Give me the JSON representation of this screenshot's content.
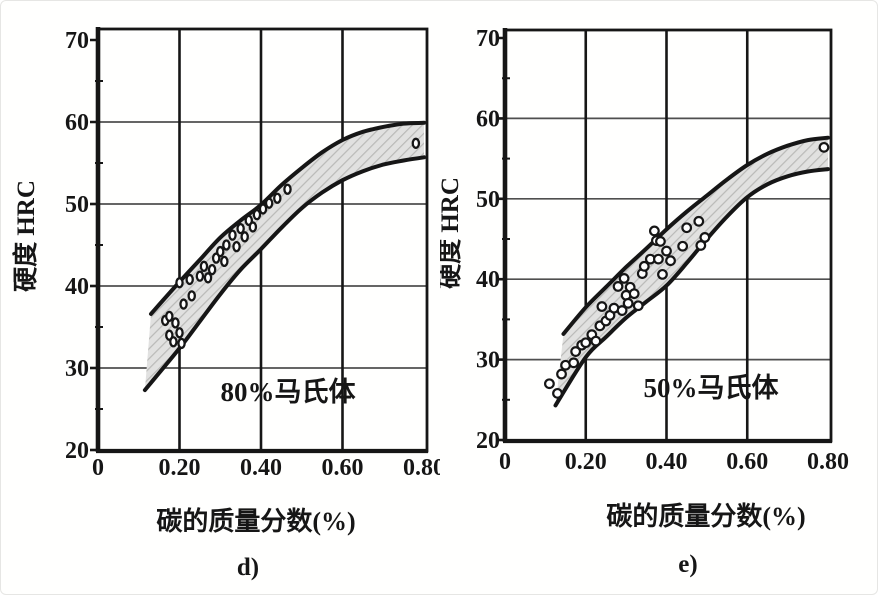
{
  "figure": {
    "background": "#fffffe",
    "ink": "#161616",
    "grid_color": "#4f4f4f",
    "band_fill": "#e1e1e0",
    "band_hatch": "#b9b9b7",
    "marker_fill": "#ffffff"
  },
  "chart_data": [
    {
      "id": "d",
      "type": "scatter",
      "caption": "d)",
      "annotation": "80%马氏体",
      "xlabel": "碳的质量分数(%)",
      "ylabel": "硬度 HRC",
      "xlim": [
        0,
        0.8
      ],
      "ylim": [
        20,
        70
      ],
      "xticks": [
        0,
        0.2,
        0.4,
        0.6,
        0.8
      ],
      "xtick_labels": [
        "0",
        "0.20",
        "0.40",
        "0.60",
        "0.80"
      ],
      "yticks": [
        20,
        30,
        40,
        50,
        60,
        70
      ],
      "ytick_labels": [
        "20",
        "30",
        "40",
        "50",
        "60",
        "70"
      ],
      "minor_yticks": [
        25,
        35,
        45,
        55,
        65
      ],
      "grid": true,
      "band_upper": [
        [
          0.13,
          36.6
        ],
        [
          0.2,
          40.5
        ],
        [
          0.25,
          43.2
        ],
        [
          0.3,
          45.9
        ],
        [
          0.35,
          48.0
        ],
        [
          0.4,
          49.9
        ],
        [
          0.45,
          52.3
        ],
        [
          0.5,
          54.4
        ],
        [
          0.55,
          56.3
        ],
        [
          0.6,
          57.8
        ],
        [
          0.65,
          58.8
        ],
        [
          0.7,
          59.4
        ],
        [
          0.75,
          59.8
        ],
        [
          0.8,
          59.9
        ]
      ],
      "band_lower": [
        [
          0.115,
          27.3
        ],
        [
          0.2,
          32.4
        ],
        [
          0.25,
          35.7
        ],
        [
          0.3,
          39.0
        ],
        [
          0.35,
          42.0
        ],
        [
          0.4,
          44.5
        ],
        [
          0.45,
          47.1
        ],
        [
          0.5,
          49.5
        ],
        [
          0.55,
          51.4
        ],
        [
          0.6,
          52.9
        ],
        [
          0.65,
          54.0
        ],
        [
          0.7,
          54.8
        ],
        [
          0.75,
          55.3
        ],
        [
          0.8,
          55.7
        ]
      ],
      "points": [
        [
          0.165,
          35.8
        ],
        [
          0.175,
          36.3
        ],
        [
          0.175,
          34.0
        ],
        [
          0.185,
          33.2
        ],
        [
          0.19,
          35.5
        ],
        [
          0.2,
          34.3
        ],
        [
          0.205,
          33.0
        ],
        [
          0.21,
          37.8
        ],
        [
          0.23,
          38.8
        ],
        [
          0.2,
          40.4
        ],
        [
          0.225,
          40.8
        ],
        [
          0.25,
          41.2
        ],
        [
          0.27,
          41.0
        ],
        [
          0.26,
          42.4
        ],
        [
          0.28,
          42.0
        ],
        [
          0.29,
          43.4
        ],
        [
          0.3,
          44.2
        ],
        [
          0.31,
          43.0
        ],
        [
          0.315,
          45.0
        ],
        [
          0.33,
          46.2
        ],
        [
          0.34,
          44.8
        ],
        [
          0.35,
          47.0
        ],
        [
          0.36,
          46.0
        ],
        [
          0.37,
          48.0
        ],
        [
          0.38,
          47.2
        ],
        [
          0.39,
          48.7
        ],
        [
          0.405,
          49.4
        ],
        [
          0.42,
          50.1
        ],
        [
          0.44,
          50.7
        ],
        [
          0.465,
          51.8
        ],
        [
          0.78,
          57.4
        ]
      ]
    },
    {
      "id": "e",
      "type": "scatter",
      "caption": "e)",
      "annotation": "50%马氏体",
      "xlabel": "碳的质量分数(%)",
      "ylabel": "硬度 HRC",
      "xlim": [
        0,
        0.8
      ],
      "ylim": [
        20,
        70
      ],
      "xticks": [
        0,
        0.2,
        0.4,
        0.6,
        0.8
      ],
      "xtick_labels": [
        "0",
        "0.20",
        "0.40",
        "0.60",
        "0.80"
      ],
      "yticks": [
        20,
        30,
        40,
        50,
        60,
        70
      ],
      "ytick_labels": [
        "20",
        "30",
        "40",
        "50",
        "60",
        "70"
      ],
      "minor_yticks": [
        25,
        35,
        45,
        55,
        65
      ],
      "grid": true,
      "band_upper": [
        [
          0.145,
          33.2
        ],
        [
          0.2,
          36.5
        ],
        [
          0.25,
          39.0
        ],
        [
          0.3,
          41.5
        ],
        [
          0.35,
          43.8
        ],
        [
          0.4,
          46.2
        ],
        [
          0.45,
          48.4
        ],
        [
          0.5,
          50.4
        ],
        [
          0.55,
          52.4
        ],
        [
          0.6,
          54.2
        ],
        [
          0.65,
          55.6
        ],
        [
          0.7,
          56.6
        ],
        [
          0.75,
          57.3
        ],
        [
          0.8,
          57.6
        ]
      ],
      "band_lower": [
        [
          0.125,
          24.3
        ],
        [
          0.2,
          30.3
        ],
        [
          0.25,
          32.8
        ],
        [
          0.3,
          35.2
        ],
        [
          0.35,
          37.2
        ],
        [
          0.4,
          39.2
        ],
        [
          0.45,
          42.0
        ],
        [
          0.5,
          45.0
        ],
        [
          0.55,
          47.8
        ],
        [
          0.6,
          50.2
        ],
        [
          0.65,
          51.8
        ],
        [
          0.7,
          52.8
        ],
        [
          0.75,
          53.4
        ],
        [
          0.8,
          53.7
        ]
      ],
      "points": [
        [
          0.11,
          27.0
        ],
        [
          0.13,
          25.8
        ],
        [
          0.14,
          28.2
        ],
        [
          0.15,
          29.3
        ],
        [
          0.17,
          29.6
        ],
        [
          0.175,
          31.0
        ],
        [
          0.19,
          31.8
        ],
        [
          0.2,
          32.1
        ],
        [
          0.215,
          33.1
        ],
        [
          0.225,
          32.3
        ],
        [
          0.235,
          34.2
        ],
        [
          0.24,
          36.6
        ],
        [
          0.25,
          34.8
        ],
        [
          0.26,
          35.5
        ],
        [
          0.27,
          36.4
        ],
        [
          0.28,
          39.1
        ],
        [
          0.29,
          36.1
        ],
        [
          0.295,
          40.1
        ],
        [
          0.3,
          38.0
        ],
        [
          0.305,
          37.0
        ],
        [
          0.31,
          39.0
        ],
        [
          0.32,
          38.2
        ],
        [
          0.33,
          36.7
        ],
        [
          0.34,
          40.7
        ],
        [
          0.345,
          41.6
        ],
        [
          0.36,
          42.5
        ],
        [
          0.37,
          46.0
        ],
        [
          0.375,
          44.8
        ],
        [
          0.38,
          42.5
        ],
        [
          0.385,
          44.7
        ],
        [
          0.39,
          40.6
        ],
        [
          0.4,
          43.5
        ],
        [
          0.41,
          42.3
        ],
        [
          0.44,
          44.1
        ],
        [
          0.45,
          46.4
        ],
        [
          0.48,
          47.2
        ],
        [
          0.485,
          44.2
        ],
        [
          0.495,
          45.2
        ],
        [
          0.79,
          56.4
        ]
      ]
    }
  ]
}
